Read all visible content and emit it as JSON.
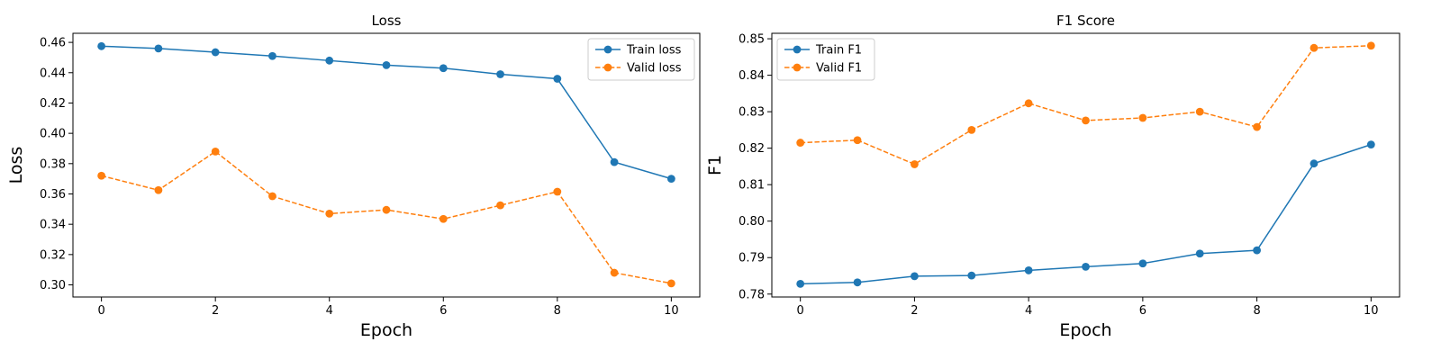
{
  "chart_data": [
    {
      "type": "line",
      "title": "Loss",
      "xlabel": "Epoch",
      "ylabel": "Loss",
      "xlim": [
        -0.5,
        10.5
      ],
      "ylim": [
        0.292,
        0.466
      ],
      "xticks": [
        0,
        2,
        4,
        6,
        8,
        10
      ],
      "xtick_labels": [
        "0",
        "2",
        "4",
        "6",
        "8",
        "10"
      ],
      "yticks": [
        0.3,
        0.32,
        0.34,
        0.36,
        0.38,
        0.4,
        0.42,
        0.44,
        0.46
      ],
      "ytick_labels": [
        "0.30",
        "0.32",
        "0.34",
        "0.36",
        "0.38",
        "0.40",
        "0.42",
        "0.44",
        "0.46"
      ],
      "grid": false,
      "legend_position": "upper right",
      "x": [
        0,
        1,
        2,
        3,
        4,
        5,
        6,
        7,
        8,
        9,
        10
      ],
      "series": [
        {
          "name": "Train loss",
          "color": "#1f77b4",
          "linestyle": "solid",
          "marker": "circle",
          "values": [
            0.4575,
            0.456,
            0.4535,
            0.451,
            0.448,
            0.445,
            0.443,
            0.439,
            0.436,
            0.381,
            0.37
          ]
        },
        {
          "name": "Valid loss",
          "color": "#ff7f0e",
          "linestyle": "dashed",
          "marker": "circle",
          "values": [
            0.372,
            0.3625,
            0.388,
            0.3585,
            0.347,
            0.3495,
            0.3435,
            0.3525,
            0.3615,
            0.308,
            0.301
          ]
        }
      ]
    },
    {
      "type": "line",
      "title": "F1 Score",
      "xlabel": "Epoch",
      "ylabel": "F1",
      "xlim": [
        -0.5,
        10.5
      ],
      "ylim": [
        0.7792,
        0.8515
      ],
      "xticks": [
        0,
        2,
        4,
        6,
        8,
        10
      ],
      "xtick_labels": [
        "0",
        "2",
        "4",
        "6",
        "8",
        "10"
      ],
      "yticks": [
        0.78,
        0.79,
        0.8,
        0.81,
        0.82,
        0.83,
        0.84,
        0.85
      ],
      "ytick_labels": [
        "0.78",
        "0.79",
        "0.80",
        "0.81",
        "0.82",
        "0.83",
        "0.84",
        "0.85"
      ],
      "grid": false,
      "legend_position": "upper left",
      "x": [
        0,
        1,
        2,
        3,
        4,
        5,
        6,
        7,
        8,
        9,
        10
      ],
      "series": [
        {
          "name": "Train F1",
          "color": "#1f77b4",
          "linestyle": "solid",
          "marker": "circle",
          "values": [
            0.7828,
            0.7832,
            0.7849,
            0.7851,
            0.7865,
            0.7875,
            0.7884,
            0.7911,
            0.792,
            0.8158,
            0.821
          ]
        },
        {
          "name": "Valid F1",
          "color": "#ff7f0e",
          "linestyle": "dashed",
          "marker": "circle",
          "values": [
            0.8215,
            0.8222,
            0.8156,
            0.825,
            0.8323,
            0.8276,
            0.8283,
            0.83,
            0.8258,
            0.8475,
            0.8481
          ]
        }
      ]
    }
  ]
}
